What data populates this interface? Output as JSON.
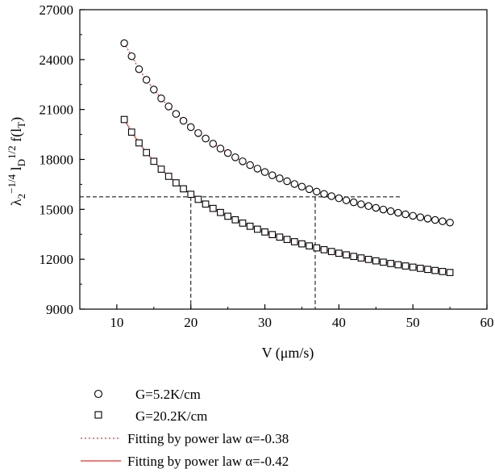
{
  "chart_data": {
    "type": "scatter",
    "title": "",
    "xlabel": "V (μm/s)",
    "ylabel": "λ2−1/4 lD1/2 f(lT)",
    "xlim": [
      5,
      60
    ],
    "ylim": [
      9000,
      27000
    ],
    "xticks": [
      "10",
      "20",
      "30",
      "40",
      "50",
      "60"
    ],
    "yticks": [
      "9000",
      "12000",
      "15000",
      "18000",
      "21000",
      "24000",
      "27000"
    ],
    "grid": false,
    "legend_position": "below-left",
    "series": [
      {
        "name": "G=5.2K/cm",
        "marker": "circle",
        "x": [
          11,
          12,
          13,
          14,
          15,
          16,
          17,
          18,
          19,
          20,
          21,
          22,
          23,
          24,
          25,
          26,
          27,
          28,
          29,
          30,
          31,
          32,
          33,
          34,
          35,
          36,
          37,
          38,
          39,
          40,
          41,
          42,
          43,
          44,
          45,
          46,
          47,
          48,
          49,
          50,
          51,
          52,
          53,
          54,
          55
        ],
        "y": [
          24985,
          24200,
          23423,
          22783,
          22201,
          21670,
          21184,
          20736,
          20323,
          19941,
          19585,
          19254,
          18944,
          18655,
          18383,
          18127,
          17887,
          17660,
          17445,
          17242,
          17048,
          16865,
          16690,
          16523,
          16364,
          16211,
          16066,
          15926,
          15792,
          15663,
          15540,
          15421,
          15307,
          15196,
          15090,
          14988,
          14889,
          14793,
          14701,
          14612,
          14525,
          14441,
          14360,
          14281,
          14205
        ]
      },
      {
        "name": "G=20.2K/cm",
        "marker": "square",
        "x": [
          11,
          12,
          13,
          14,
          15,
          16,
          17,
          18,
          19,
          20,
          21,
          22,
          23,
          24,
          25,
          26,
          27,
          28,
          29,
          30,
          31,
          32,
          33,
          34,
          35,
          36,
          37,
          38,
          39,
          40,
          41,
          42,
          43,
          44,
          45,
          46,
          47,
          48,
          49,
          50,
          51,
          52,
          53,
          54,
          55
        ],
        "y": [
          20400,
          19640,
          18994,
          18411,
          17887,
          17413,
          16984,
          16592,
          16233,
          15903,
          15599,
          15317,
          15055,
          14811,
          14584,
          14371,
          14171,
          13983,
          13806,
          13639,
          13481,
          13331,
          13189,
          13053,
          12925,
          12802,
          12684,
          12572,
          12464,
          12361,
          12263,
          12168,
          12077,
          11989,
          11904,
          11823,
          11744,
          11668,
          11595,
          11524,
          11455,
          11389,
          11324,
          11262,
          11202
        ]
      },
      {
        "name": "Fitting by power law α=-0.38",
        "style": "dotted-line",
        "color": "#e03030",
        "fits_series": 0,
        "alpha": -0.38
      },
      {
        "name": "Fitting by power law α=-0.42",
        "style": "solid-line",
        "color": "#e03030",
        "fits_series": 1,
        "alpha": -0.42
      }
    ],
    "reference_lines": {
      "horizontal_y": 15750,
      "horizontal_x_range": [
        5,
        48.3
      ],
      "vertical_x": [
        20,
        36.8
      ],
      "color": "#000000",
      "style": "dashed"
    },
    "fit_color": "#e03030"
  }
}
